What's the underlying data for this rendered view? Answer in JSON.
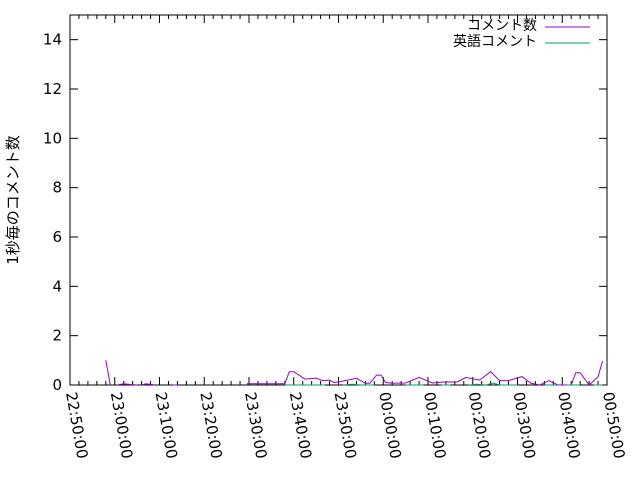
{
  "chart_data": {
    "type": "line",
    "title": "",
    "xlabel": "",
    "ylabel": "1秒毎のコメント数",
    "xlim": [
      "22:50:00",
      "00:50:00"
    ],
    "ylim": [
      0,
      15
    ],
    "grid": false,
    "legend_position": "top-right",
    "x_ticks": [
      "22:50:00",
      "23:00:00",
      "23:10:00",
      "23:20:00",
      "23:30:00",
      "23:40:00",
      "23:50:00",
      "00:00:00",
      "00:10:00",
      "00:20:00",
      "00:30:00",
      "00:40:00",
      "00:50:00"
    ],
    "y_ticks": [
      "0",
      "2",
      "4",
      "6",
      "8",
      "10",
      "12",
      "14"
    ],
    "series": [
      {
        "name": "コメント数",
        "color": "#9400d3",
        "segments": [
          [
            [
              "22:58:00",
              1.0
            ],
            [
              "22:59:00",
              0
            ]
          ],
          [
            [
              "23:00:30",
              0
            ],
            [
              "23:02:00",
              0.05
            ],
            [
              "23:03:30",
              0.02
            ],
            [
              "23:05:00",
              0
            ]
          ],
          [
            [
              "23:06:00",
              0
            ],
            [
              "23:07:00",
              0.05
            ],
            [
              "23:09:00",
              0
            ]
          ],
          [
            [
              "23:13:00",
              0
            ],
            [
              "23:14:00",
              0
            ]
          ],
          [
            [
              "23:29:30",
              0.05
            ],
            [
              "23:34:00",
              0.05
            ],
            [
              "23:38:00",
              0.05
            ],
            [
              "23:39:00",
              0.54
            ],
            [
              "23:40:00",
              0.54
            ],
            [
              "23:42:30",
              0.24
            ],
            [
              "23:45:00",
              0.28
            ],
            [
              "23:46:30",
              0.18
            ],
            [
              "23:48:00",
              0.2
            ],
            [
              "23:49:00",
              0.1
            ],
            [
              "23:50:00",
              0.12
            ],
            [
              "23:54:00",
              0.27
            ],
            [
              "23:56:00",
              0.07
            ],
            [
              "23:57:00",
              0.07
            ],
            [
              "23:58:30",
              0.4
            ],
            [
              "23:59:30",
              0.4
            ],
            [
              "00:00:30",
              0.1
            ],
            [
              "00:02:00",
              0.07
            ],
            [
              "00:05:00",
              0.08
            ],
            [
              "00:08:00",
              0.31
            ],
            [
              "00:11:00",
              0.08
            ],
            [
              "00:13:30",
              0.12
            ],
            [
              "00:16:30",
              0.12
            ],
            [
              "00:18:30",
              0.31
            ],
            [
              "00:21:30",
              0.2
            ],
            [
              "00:24:00",
              0.54
            ],
            [
              "00:26:00",
              0.18
            ],
            [
              "00:28:00",
              0.18
            ],
            [
              "00:31:00",
              0.34
            ],
            [
              "00:33:00",
              0.07
            ],
            [
              "00:35:00",
              0
            ],
            [
              "00:37:00",
              0.18
            ],
            [
              "00:39:00",
              0
            ],
            [
              "00:42:00",
              0
            ],
            [
              "00:43:00",
              0.5
            ],
            [
              "00:44:00",
              0.5
            ],
            [
              "00:46:00",
              0
            ],
            [
              "00:48:00",
              0.33
            ],
            [
              "00:49:00",
              0.97
            ]
          ]
        ]
      },
      {
        "name": "英語コメント",
        "color": "#009e73",
        "segments": [
          [
            [
              "23:38:00",
              0
            ],
            [
              "23:47:00",
              0
            ]
          ],
          [
            [
              "23:51:00",
              0
            ],
            [
              "23:53:00",
              0.03
            ],
            [
              "23:55:00",
              0
            ],
            [
              "23:58:00",
              0
            ]
          ],
          [
            [
              "00:05:00",
              0
            ],
            [
              "00:09:00",
              0
            ]
          ],
          [
            [
              "00:13:00",
              0
            ],
            [
              "00:15:00",
              0
            ]
          ],
          [
            [
              "00:19:00",
              0
            ],
            [
              "00:21:00",
              0.03
            ],
            [
              "00:23:00",
              0
            ],
            [
              "00:24:30",
              0.08
            ],
            [
              "00:26:00",
              0
            ],
            [
              "00:30:00",
              0
            ]
          ],
          [
            [
              "00:36:00",
              0
            ],
            [
              "00:39:00",
              0
            ]
          ],
          [
            [
              "00:41:00",
              0
            ],
            [
              "00:44:00",
              0
            ]
          ],
          [
            [
              "00:47:00",
              0
            ],
            [
              "00:49:00",
              0
            ]
          ]
        ]
      }
    ]
  }
}
